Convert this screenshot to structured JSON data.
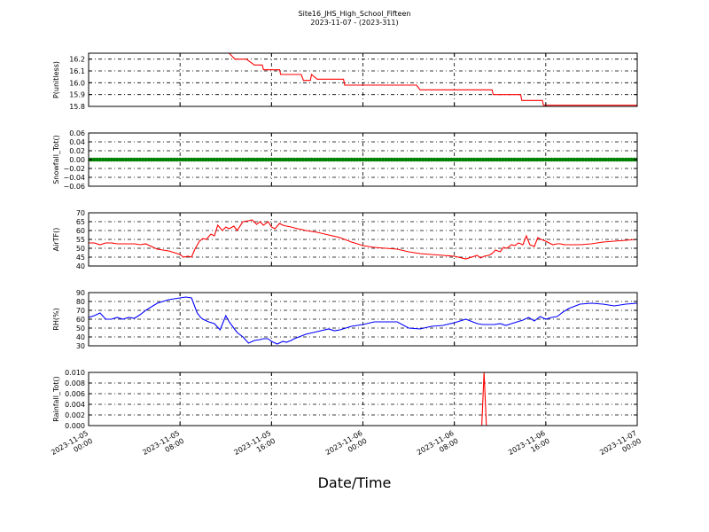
{
  "figure": {
    "title": "Site16_JHS_High_School_Fifteen",
    "subtitle": "2023-11-07 - (2023-311)",
    "xlabel": "Date/Time",
    "x_tick_labels": [
      [
        "2023-11-05",
        "00:00"
      ],
      [
        "2023-11-05",
        "08:00"
      ],
      [
        "2023-11-05",
        "16:00"
      ],
      [
        "2023-11-06",
        "00:00"
      ],
      [
        "2023-11-06",
        "08:00"
      ],
      [
        "2023-11-06",
        "16:00"
      ],
      [
        "2023-11-07",
        "00:00"
      ]
    ]
  },
  "chart_data": [
    {
      "type": "line",
      "ylabel": "P(unitless)",
      "ylim": [
        15.8,
        16.25
      ],
      "yticks": [
        15.8,
        15.9,
        16.0,
        16.1,
        16.2
      ],
      "ytick_labels": [
        "15.8",
        "15.9",
        "16.0",
        "16.1",
        "16.2"
      ],
      "xlim": [
        0,
        48
      ],
      "grid": true,
      "color": "#ff0000",
      "x": [
        12.3,
        12.8,
        13.8,
        14.5,
        15.2,
        15.3,
        16.7,
        16.8,
        18.6,
        18.8,
        19.4,
        19.5,
        20.0,
        20.1,
        22.3,
        22.4,
        23.0,
        28.7,
        29.0,
        35.3,
        35.4,
        37.8,
        37.9,
        39.7,
        39.8,
        48.0
      ],
      "y": [
        16.25,
        16.2,
        16.2,
        16.15,
        16.15,
        16.11,
        16.11,
        16.07,
        16.07,
        16.02,
        16.02,
        16.07,
        16.03,
        16.03,
        16.03,
        15.98,
        15.98,
        15.98,
        15.94,
        15.94,
        15.9,
        15.9,
        15.85,
        15.85,
        15.81,
        15.81
      ]
    },
    {
      "type": "scatter",
      "ylabel": "Snowfall_Tot()",
      "ylim": [
        -0.06,
        0.06
      ],
      "yticks": [
        -0.06,
        -0.04,
        -0.02,
        0.0,
        0.02,
        0.04,
        0.06
      ],
      "ytick_labels": [
        "−0.06",
        "−0.04",
        "−0.02",
        "0.00",
        "0.02",
        "0.04",
        "0.06"
      ],
      "xlim": [
        0,
        48
      ],
      "grid": true,
      "color": "#008000",
      "x_range": [
        0,
        48
      ],
      "x_step": 0.25,
      "constant_value": 0.0
    },
    {
      "type": "line",
      "ylabel": "AirTF()",
      "ylim": [
        40,
        70
      ],
      "yticks": [
        40,
        45,
        50,
        55,
        60,
        65,
        70
      ],
      "ytick_labels": [
        "40",
        "45",
        "50",
        "55",
        "60",
        "65",
        "70"
      ],
      "xlim": [
        0,
        48
      ],
      "grid": true,
      "color": "#ff0000",
      "x": [
        0,
        0.5,
        1,
        1.5,
        2,
        2.5,
        3,
        3.5,
        4,
        4.5,
        5,
        5.5,
        6,
        6.5,
        7,
        7.5,
        8,
        8.3,
        8.7,
        9,
        9.3,
        9.7,
        10,
        10.3,
        10.7,
        11,
        11.3,
        11.7,
        12,
        12.3,
        12.7,
        13,
        13.5,
        14,
        14.3,
        14.7,
        15,
        15.3,
        15.7,
        16,
        16.3,
        16.7,
        17,
        17.3,
        17.7,
        18,
        18.3,
        18.7,
        19,
        20,
        21,
        22,
        23,
        24,
        25,
        26,
        27,
        28,
        29,
        30,
        31,
        32,
        33,
        34,
        34.3,
        34.6,
        35,
        35.3,
        35.6,
        36,
        36.3,
        36.6,
        37,
        37.3,
        37.6,
        38,
        38.3,
        38.6,
        39,
        39.3,
        39.6,
        40,
        40.3,
        40.6,
        41,
        41.3,
        41.6,
        42,
        43,
        44,
        45,
        46,
        47,
        48
      ],
      "y": [
        53,
        53,
        52,
        53,
        53,
        52.5,
        52.5,
        52.5,
        52.5,
        52,
        52.5,
        51,
        49.5,
        49,
        48.5,
        47.5,
        46.5,
        45,
        45.5,
        45,
        49.5,
        54,
        55.5,
        55,
        58,
        57,
        63,
        60,
        62,
        61,
        62.5,
        60,
        65,
        65.5,
        66,
        63.5,
        65,
        63,
        65,
        62,
        61,
        64,
        63,
        62.5,
        62,
        61.5,
        61,
        60.5,
        60,
        59,
        57.5,
        56,
        53.5,
        51.5,
        50.5,
        50,
        49.5,
        48,
        47,
        46.5,
        46,
        45.5,
        44,
        46,
        44.5,
        45.5,
        46,
        47,
        49,
        48,
        50.5,
        50,
        52,
        51.5,
        53,
        52,
        57,
        52,
        51,
        56,
        55,
        54,
        53,
        52,
        52.5,
        52.5,
        52,
        52,
        52,
        52.5,
        53.5,
        54,
        54.5,
        55
      ]
    },
    {
      "type": "line",
      "ylabel": "RH(%)",
      "ylim": [
        30,
        90
      ],
      "yticks": [
        30,
        40,
        50,
        60,
        70,
        80,
        90
      ],
      "ytick_labels": [
        "30",
        "40",
        "50",
        "60",
        "70",
        "80",
        "90"
      ],
      "xlim": [
        0,
        48
      ],
      "grid": true,
      "color": "#0000ff",
      "x": [
        0,
        0.5,
        1,
        1.5,
        2,
        2.5,
        3,
        3.5,
        4,
        4.5,
        5,
        5.5,
        6,
        6.5,
        7,
        7.5,
        8,
        8.5,
        9,
        9.5,
        9.8,
        10,
        10.5,
        11,
        11.5,
        12,
        12.3,
        12.7,
        13,
        13.5,
        14,
        14.5,
        15,
        15.3,
        15.7,
        16,
        16.5,
        17,
        17.3,
        17.7,
        18,
        19,
        20,
        21,
        21.5,
        22,
        23,
        24,
        25,
        26,
        27,
        28,
        29,
        30,
        31,
        32,
        33,
        34,
        34.5,
        35,
        35.5,
        36,
        36.5,
        37,
        37.5,
        38,
        38.5,
        39,
        39.5,
        40,
        40.5,
        41,
        41.5,
        42,
        43,
        44,
        45,
        46,
        47,
        48
      ],
      "y": [
        62,
        64,
        67,
        60,
        60,
        62,
        60,
        62,
        61,
        65,
        70,
        74,
        78,
        80,
        82,
        83,
        84,
        85,
        84,
        67,
        62,
        60,
        57,
        55,
        48,
        64,
        57,
        50,
        45,
        40,
        33,
        36,
        37,
        38,
        38,
        35,
        32,
        35,
        34,
        36,
        38,
        43,
        46,
        49,
        47,
        48,
        52,
        54,
        57,
        57,
        57,
        50,
        49,
        52,
        53,
        56,
        60,
        55,
        54,
        54,
        54,
        55,
        53,
        55,
        57,
        59,
        62,
        58,
        63,
        60,
        62,
        63,
        68,
        72,
        77,
        78,
        77,
        75,
        77,
        78
      ]
    },
    {
      "type": "line",
      "ylabel": "Rainfall_Tot()",
      "ylim": [
        0,
        0.01
      ],
      "yticks": [
        0.0,
        0.002,
        0.004,
        0.006,
        0.008,
        0.01
      ],
      "ytick_labels": [
        "0.000",
        "0.002",
        "0.004",
        "0.006",
        "0.008",
        "0.010"
      ],
      "xlim": [
        0,
        48
      ],
      "grid": true,
      "color": "#ff0000",
      "x": [
        0,
        34.4,
        34.6,
        34.8,
        35.0,
        48
      ],
      "y": [
        0,
        0,
        0.01,
        0,
        0,
        0
      ]
    }
  ]
}
